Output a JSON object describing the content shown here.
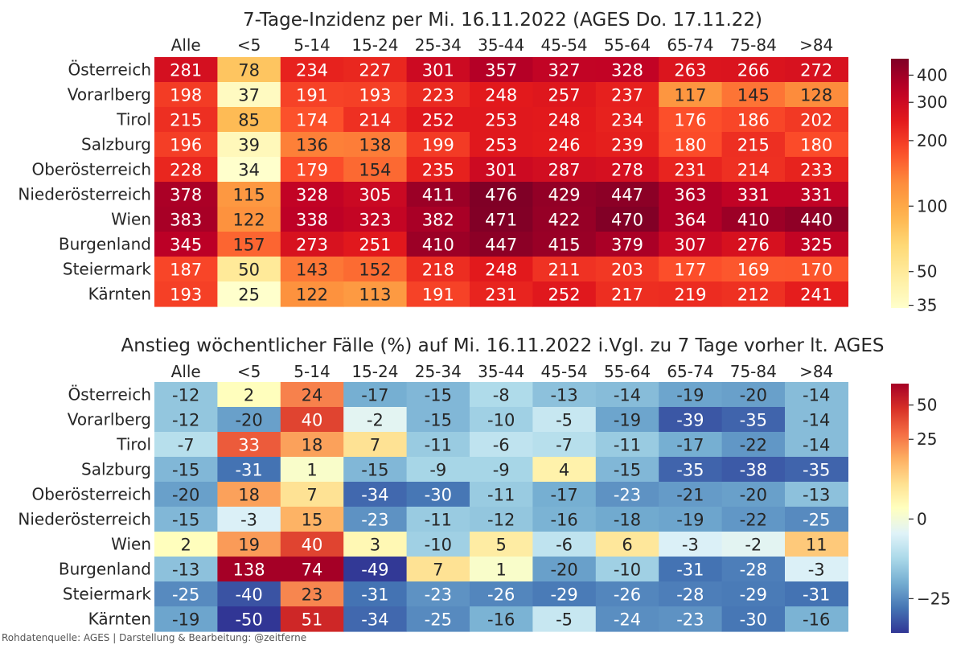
{
  "footer": "Rohdatenquelle: AGES | Darstellung & Bearbeitung: @zeitferne",
  "chart_data": [
    {
      "type": "heatmap",
      "title": "7-Tage-Inzidenz per Mi. 16.11.2022  (AGES Do. 17.11.22)",
      "columns": [
        "Alle",
        "<5",
        "5-14",
        "15-24",
        "25-34",
        "35-44",
        "45-54",
        "55-64",
        "65-74",
        "75-84",
        ">84"
      ],
      "rows": [
        "Österreich",
        "Vorarlberg",
        "Tirol",
        "Salzburg",
        "Oberösterreich",
        "Niederösterreich",
        "Wien",
        "Burgenland",
        "Steiermark",
        "Kärnten"
      ],
      "values": [
        [
          281,
          78,
          234,
          227,
          301,
          357,
          327,
          328,
          263,
          266,
          272
        ],
        [
          198,
          37,
          191,
          193,
          223,
          248,
          257,
          237,
          117,
          145,
          128
        ],
        [
          215,
          85,
          174,
          214,
          252,
          253,
          248,
          234,
          176,
          186,
          202
        ],
        [
          196,
          39,
          136,
          138,
          199,
          253,
          246,
          239,
          180,
          215,
          180
        ],
        [
          228,
          34,
          179,
          154,
          235,
          301,
          287,
          278,
          231,
          214,
          233
        ],
        [
          378,
          115,
          328,
          305,
          411,
          476,
          429,
          447,
          363,
          331,
          331
        ],
        [
          383,
          122,
          338,
          323,
          382,
          471,
          422,
          470,
          364,
          410,
          440
        ],
        [
          345,
          157,
          273,
          251,
          410,
          447,
          415,
          379,
          307,
          276,
          325
        ],
        [
          187,
          50,
          143,
          152,
          218,
          248,
          211,
          203,
          177,
          169,
          170
        ],
        [
          193,
          25,
          122,
          113,
          191,
          231,
          252,
          217,
          219,
          212,
          241
        ]
      ],
      "colormap": "YlOrRd",
      "color_scale": "log",
      "color_range": [
        34,
        476
      ],
      "colorbar_ticks": [
        "400",
        "300",
        "200",
        "100",
        "50",
        "35"
      ]
    },
    {
      "type": "heatmap",
      "title": "Anstieg wöchentlicher Fälle (%) auf Mi. 16.11.2022 i.Vgl. zu 7 Tage vorher lt. AGES",
      "columns": [
        "Alle",
        "<5",
        "5-14",
        "15-24",
        "25-34",
        "35-44",
        "45-54",
        "55-64",
        "65-74",
        "75-84",
        ">84"
      ],
      "rows": [
        "Österreich",
        "Vorarlberg",
        "Tirol",
        "Salzburg",
        "Oberösterreich",
        "Niederösterreich",
        "Wien",
        "Burgenland",
        "Steiermark",
        "Kärnten"
      ],
      "values": [
        [
          -12,
          2,
          24,
          -17,
          -15,
          -8,
          -13,
          -14,
          -19,
          -20,
          -14
        ],
        [
          -12,
          -20,
          40,
          -2,
          -15,
          -10,
          -5,
          -19,
          -39,
          -35,
          -14
        ],
        [
          -7,
          33,
          18,
          7,
          -11,
          -6,
          -7,
          -11,
          -17,
          -22,
          -14
        ],
        [
          -15,
          -31,
          1,
          -15,
          -9,
          -9,
          4,
          -15,
          -35,
          -38,
          -35
        ],
        [
          -20,
          18,
          7,
          -34,
          -30,
          -11,
          -17,
          -23,
          -21,
          -20,
          -13
        ],
        [
          -15,
          -3,
          15,
          -23,
          -11,
          -12,
          -16,
          -18,
          -19,
          -22,
          -25
        ],
        [
          2,
          19,
          40,
          3,
          -10,
          5,
          -6,
          6,
          -3,
          -2,
          11
        ],
        [
          -13,
          138,
          74,
          -49,
          7,
          1,
          -20,
          -10,
          -31,
          -28,
          -3
        ],
        [
          -25,
          -40,
          23,
          -31,
          -23,
          -26,
          -29,
          -26,
          -28,
          -29,
          -31
        ],
        [
          -19,
          -50,
          51,
          -34,
          -25,
          -16,
          -5,
          -24,
          -23,
          -30,
          -16
        ]
      ],
      "colormap": "RdYlBu_r",
      "color_scale": "symlog",
      "color_range": [
        -50,
        74
      ],
      "colorbar_ticks": [
        "50",
        "25",
        "0",
        "−25"
      ]
    }
  ]
}
